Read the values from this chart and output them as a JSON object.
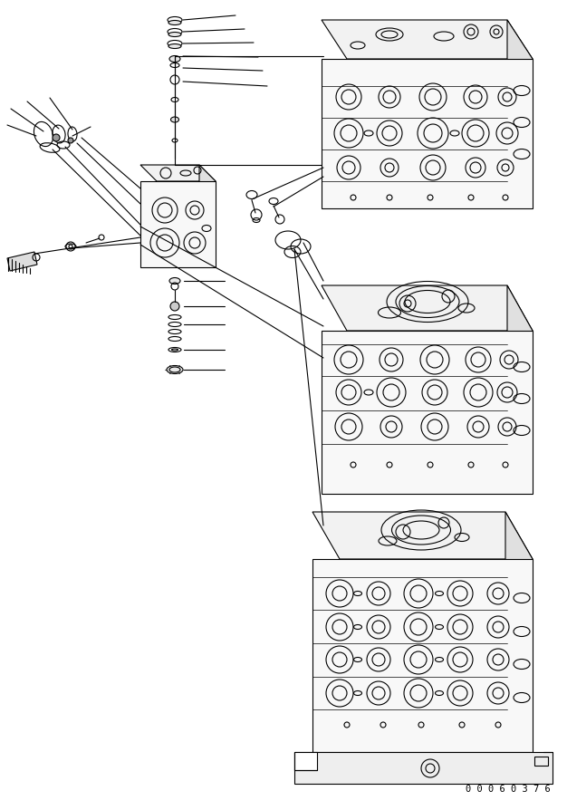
{
  "fig_width": 6.26,
  "fig_height": 8.94,
  "dpi": 100,
  "bg_color": "#ffffff",
  "line_color": "#000000",
  "line_width": 0.8,
  "serial_text": "0 0 0 6 0 3 7 6",
  "serial_fontsize": 7.5
}
